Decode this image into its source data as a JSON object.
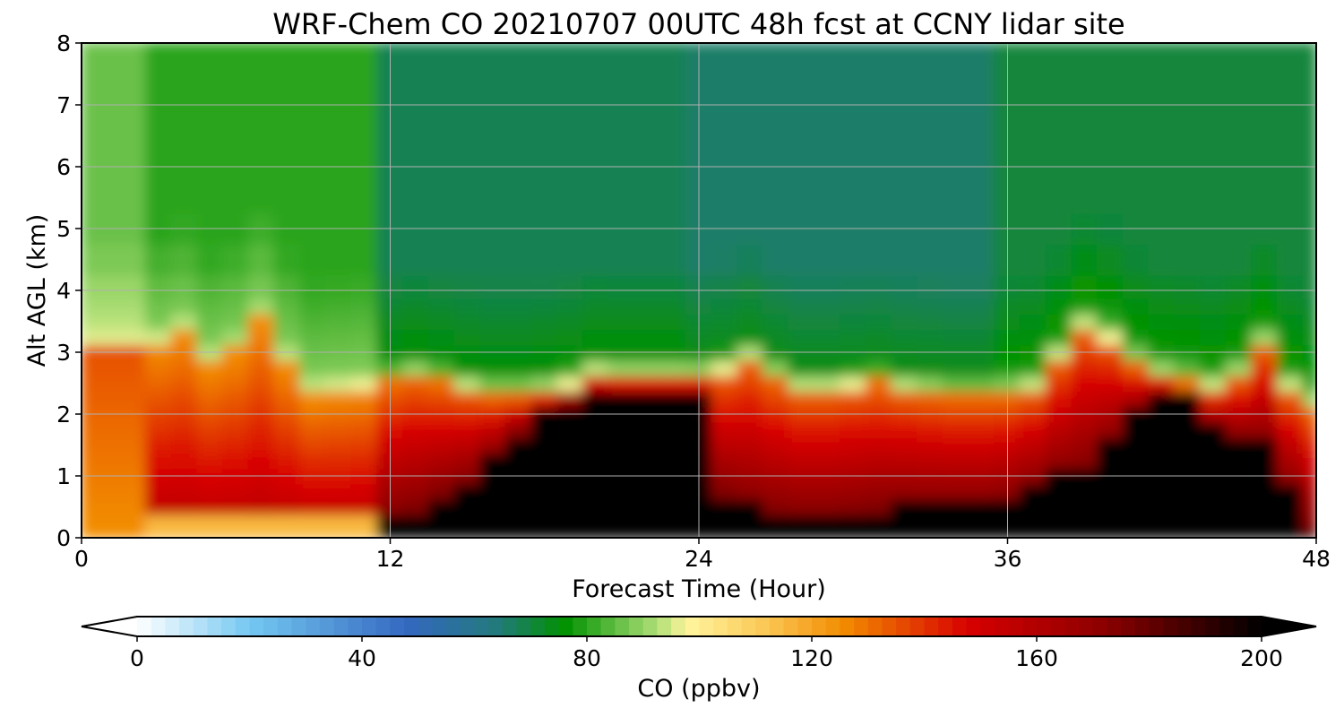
{
  "chart_data": {
    "type": "heatmap",
    "title": "WRF-Chem CO  20210707 00UTC 48h fcst at CCNY lidar site",
    "xlabel": "Forecast Time (Hour)",
    "ylabel": "Alt AGL (km)",
    "xlim": [
      0,
      48
    ],
    "ylim": [
      0,
      8
    ],
    "x_ticks": [
      0,
      12,
      24,
      36,
      48
    ],
    "y_ticks": [
      0,
      1,
      2,
      3,
      4,
      5,
      6,
      7,
      8
    ],
    "grid": true,
    "x": [
      0,
      1,
      2,
      3,
      4,
      5,
      6,
      7,
      8,
      9,
      10,
      11,
      12,
      13,
      14,
      15,
      16,
      17,
      18,
      19,
      20,
      21,
      22,
      23,
      24,
      25,
      26,
      27,
      28,
      29,
      30,
      31,
      32,
      33,
      34,
      35,
      36,
      37,
      38,
      39,
      40,
      41,
      42,
      43,
      44,
      45,
      46,
      47,
      48
    ],
    "y": [
      0,
      0.25,
      0.5,
      0.75,
      1,
      1.25,
      1.5,
      1.75,
      2,
      2.25,
      2.5,
      2.75,
      3,
      3.25,
      3.5,
      3.75,
      4,
      4.5,
      5,
      5.5,
      6,
      6.5,
      7,
      7.5,
      8
    ],
    "profiles": [
      {
        "hours": [
          0,
          1,
          2
        ],
        "boundary_top_km": 3.0,
        "core_km": [
          0.0,
          0.0
        ],
        "core_value": 130,
        "lower_value": 125,
        "free_troposphere_value": 86,
        "note_value": 105
      },
      {
        "hours": [
          3,
          4,
          5,
          6,
          7,
          8,
          9,
          10,
          11
        ],
        "boundary_top_km": [
          3.1,
          3.3,
          2.8,
          3.0,
          3.5,
          2.8,
          2.3,
          2.35,
          2.4
        ],
        "core_value": 160,
        "surface_layer_value": 115,
        "free_troposphere_value": 80
      },
      {
        "hours": [
          12,
          13,
          14,
          15,
          16,
          17,
          18,
          19,
          20,
          21,
          22,
          23
        ],
        "boundary_top_km": [
          2.5,
          2.6,
          2.5,
          2.4,
          2.3,
          2.3,
          2.35,
          2.45,
          2.65,
          2.6,
          2.6,
          2.6
        ],
        "core_top_km": [
          0.3,
          0.45,
          0.7,
          0.9,
          1.3,
          1.7,
          2.0,
          2.2,
          2.3,
          2.3,
          2.3,
          2.3
        ],
        "core_value": 200,
        "free_troposphere_value": 68
      },
      {
        "hours": [
          24,
          25,
          26,
          27,
          28,
          29,
          30,
          31,
          32,
          33,
          34,
          35
        ],
        "boundary_top_km": [
          2.6,
          2.7,
          2.9,
          2.6,
          2.4,
          2.4,
          2.45,
          2.5,
          2.4,
          2.35,
          2.3,
          2.3
        ],
        "core_top_km": [
          2.3,
          0.7,
          0.5,
          0.4,
          0.35,
          0.35,
          0.4,
          0.45,
          0.5,
          0.5,
          0.5,
          0.5
        ],
        "core_value": 200,
        "free_troposphere_value": 66
      },
      {
        "hours": [
          36,
          37,
          38,
          39,
          40,
          41,
          42,
          43,
          44,
          45,
          46,
          47,
          48
        ],
        "boundary_top_km": [
          2.3,
          2.4,
          2.9,
          3.4,
          3.2,
          2.8,
          2.6,
          2.5,
          2.4,
          2.6,
          3.1,
          2.4,
          2.1
        ],
        "core_top_km": [
          0.6,
          0.8,
          1.0,
          1.1,
          1.5,
          2.0,
          2.3,
          2.3,
          1.8,
          1.6,
          1.5,
          0.8,
          0.1
        ],
        "core_value": 200,
        "free_troposphere_value": 70
      }
    ],
    "colorbar": {
      "label": "CO  (ppbv)",
      "min": 0,
      "max": 200,
      "ticks": [
        0,
        40,
        80,
        120,
        160,
        200
      ],
      "extend": "both",
      "stops": [
        {
          "value": 0,
          "color": "#ffffff"
        },
        {
          "value": 20,
          "color": "#74c8f2"
        },
        {
          "value": 48,
          "color": "#3468c0"
        },
        {
          "value": 64,
          "color": "#237a7c"
        },
        {
          "value": 76,
          "color": "#009100"
        },
        {
          "value": 92,
          "color": "#a9dd73"
        },
        {
          "value": 98,
          "color": "#fff59d"
        },
        {
          "value": 112,
          "color": "#fbc653"
        },
        {
          "value": 126,
          "color": "#f28a00"
        },
        {
          "value": 148,
          "color": "#d70000"
        },
        {
          "value": 172,
          "color": "#8c0000"
        },
        {
          "value": 200,
          "color": "#000000"
        }
      ]
    }
  }
}
